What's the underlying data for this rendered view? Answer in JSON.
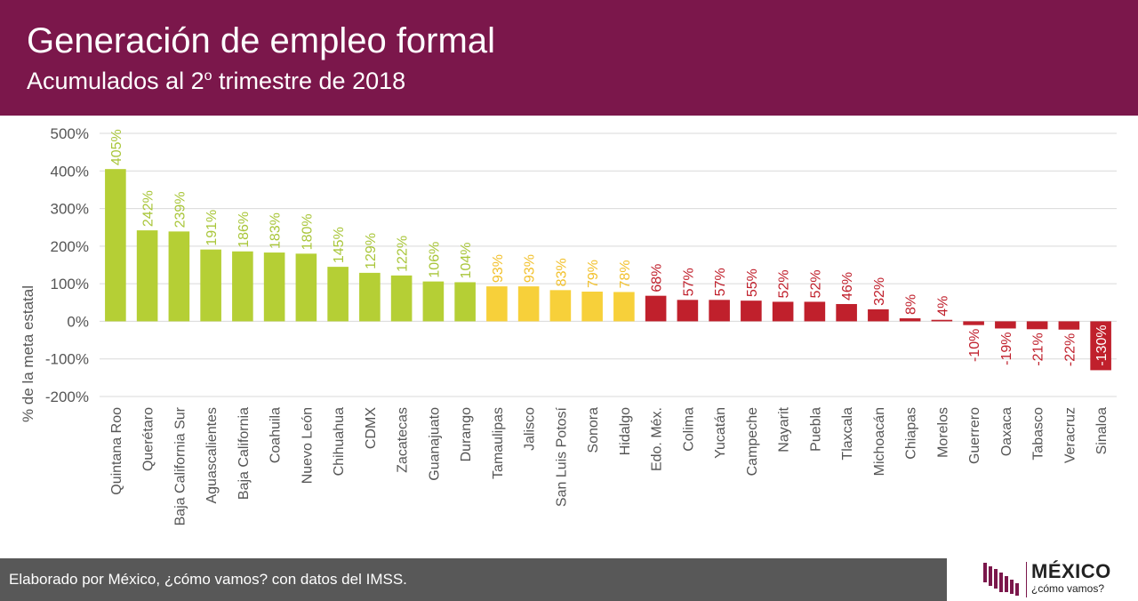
{
  "header": {
    "title": "Generación de empleo formal",
    "subtitle_pre": "Acumulados al 2",
    "subtitle_sup": "o",
    "subtitle_post": " trimestre de 2018",
    "background": "#7b174b"
  },
  "footer": {
    "text": "Elaborado por México, ¿cómo vamos? con datos del IMSS."
  },
  "logo": {
    "name": "MÉXICO",
    "tagline": "¿cómo vamos?",
    "icon": "bar-logo-icon"
  },
  "colors": {
    "green": "#b5cf35",
    "yellow": "#f7d03a",
    "red": "#c0202c",
    "green_label": "#a9c63a",
    "yellow_label": "#f2c12e",
    "red_label": "#c0202c"
  },
  "chart_data": {
    "type": "bar",
    "ylabel": "% de la meta estatal",
    "ylim": [
      -200,
      500
    ],
    "yticks": [
      -200,
      -100,
      0,
      100,
      200,
      300,
      400,
      500
    ],
    "ytick_labels": [
      "-200%",
      "-100%",
      "0%",
      "100%",
      "200%",
      "300%",
      "400%",
      "500%"
    ],
    "grid": true,
    "categories": [
      "Quintana Roo",
      "Querétaro",
      "Baja California Sur",
      "Aguascalientes",
      "Baja California",
      "Coahuila",
      "Nuevo León",
      "Chihuahua",
      "CDMX",
      "Zacatecas",
      "Guanajuato",
      "Durango",
      "Tamaulipas",
      "Jalisco",
      "San Luis Potosí",
      "Sonora",
      "Hidalgo",
      "Edo. Méx.",
      "Colima",
      "Yucatán",
      "Campeche",
      "Nayarit",
      "Puebla",
      "Tlaxcala",
      "Michoacán",
      "Chiapas",
      "Morelos",
      "Guerrero",
      "Oaxaca",
      "Tabasco",
      "Veracruz",
      "Sinaloa"
    ],
    "values": [
      405,
      242,
      239,
      191,
      186,
      183,
      180,
      145,
      129,
      122,
      106,
      104,
      93,
      93,
      83,
      79,
      78,
      68,
      57,
      57,
      55,
      52,
      52,
      46,
      32,
      8,
      4,
      -10,
      -19,
      -21,
      -22,
      -130
    ],
    "data_labels": [
      "405%",
      "242%",
      "239%",
      "191%",
      "186%",
      "183%",
      "180%",
      "145%",
      "129%",
      "122%",
      "106%",
      "104%",
      "93%",
      "93%",
      "83%",
      "79%",
      "78%",
      "68%",
      "57%",
      "57%",
      "55%",
      "52%",
      "52%",
      "46%",
      "32%",
      "8%",
      "4%",
      "-10%",
      "-19%",
      "-21%",
      "-22%",
      "-130%"
    ],
    "color_groups": [
      "green",
      "green",
      "green",
      "green",
      "green",
      "green",
      "green",
      "green",
      "green",
      "green",
      "green",
      "green",
      "yellow",
      "yellow",
      "yellow",
      "yellow",
      "yellow",
      "red",
      "red",
      "red",
      "red",
      "red",
      "red",
      "red",
      "red",
      "red",
      "red",
      "red",
      "red",
      "red",
      "red",
      "red"
    ]
  }
}
